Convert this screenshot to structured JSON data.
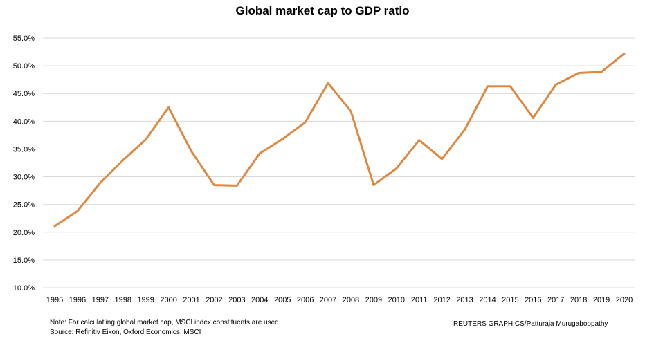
{
  "chart_data": {
    "type": "line",
    "title": "Global market cap to GDP ratio",
    "xlabel": "",
    "ylabel": "",
    "ylim": [
      10,
      55
    ],
    "y_ticks": [
      "10.0%",
      "15.0%",
      "20.0%",
      "25.0%",
      "30.0%",
      "35.0%",
      "40.0%",
      "45.0%",
      "50.0%",
      "55.0%"
    ],
    "y_tick_values": [
      10,
      15,
      20,
      25,
      30,
      35,
      40,
      45,
      50,
      55
    ],
    "grid": true,
    "categories": [
      "1995",
      "1996",
      "1997",
      "1998",
      "1999",
      "2000",
      "2001",
      "2002",
      "2003",
      "2004",
      "2005",
      "2006",
      "2007",
      "2008",
      "2009",
      "2010",
      "2011",
      "2012",
      "2013",
      "2014",
      "2015",
      "2016",
      "2017",
      "2018",
      "2019",
      "2020"
    ],
    "series": [
      {
        "name": "Global market cap to GDP ratio",
        "color": "#E0873F",
        "values": [
          21.1,
          23.8,
          28.9,
          33.0,
          36.7,
          42.5,
          34.6,
          28.5,
          28.4,
          34.2,
          36.8,
          39.8,
          46.9,
          41.8,
          28.5,
          31.5,
          36.6,
          33.2,
          38.5,
          46.3,
          46.3,
          40.6,
          46.6,
          48.7,
          48.9,
          52.2
        ]
      }
    ]
  },
  "footer": {
    "note": "Note: For calculatiing global market cap, MSCI index constituents are used",
    "source": "Source: Refinitiv Eikon, Oxford Economics, MSCI",
    "credit": "REUTERS GRAPHICS/Patturaja Murugaboopathy"
  },
  "colors": {
    "line": "#E0873F",
    "grid": "#D9D9D9"
  }
}
